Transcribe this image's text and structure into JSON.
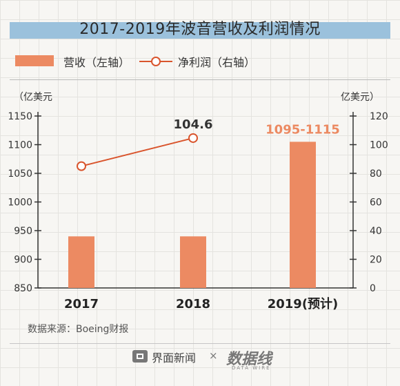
{
  "title": "2017-2019年波音营收及利润情况",
  "legend": {
    "revenue": "营收（左轴）",
    "profit": "净利润（右轴）"
  },
  "unit_left": "（亿美元",
  "unit_right": "亿美元）",
  "source": "数据来源：Boeing财报",
  "brand": {
    "name": "界面新闻",
    "separator": "×",
    "partner": "数据线",
    "partner_sub": "DATA WIRE"
  },
  "colors": {
    "revenue": "#ec8a62",
    "profit": "#d9542c",
    "axis": "#333333",
    "label_2018": "#333333",
    "label_2019": "#ec8a62"
  },
  "chart_data": {
    "type": "bar",
    "categories": [
      "2017",
      "2018",
      "2019(预计)"
    ],
    "series": [
      {
        "name": "营收",
        "axis": "left",
        "type": "bar",
        "values": [
          940,
          940,
          1105
        ]
      },
      {
        "name": "净利润",
        "axis": "right",
        "type": "line",
        "values": [
          85,
          104.6,
          null
        ]
      }
    ],
    "annotations": [
      {
        "category": "2018",
        "series": "净利润",
        "text": "104.6"
      },
      {
        "category": "2019(预计)",
        "series": "营收",
        "text": "1095-1115"
      }
    ],
    "y_left": {
      "min": 850,
      "max": 1150,
      "ticks": [
        "850",
        "900",
        "950",
        "1000",
        "1050",
        "1100",
        "1150"
      ]
    },
    "y_right": {
      "min": 0,
      "max": 120,
      "ticks": [
        "0",
        "20",
        "40",
        "60",
        "80",
        "100",
        "120"
      ]
    },
    "grid": false
  }
}
